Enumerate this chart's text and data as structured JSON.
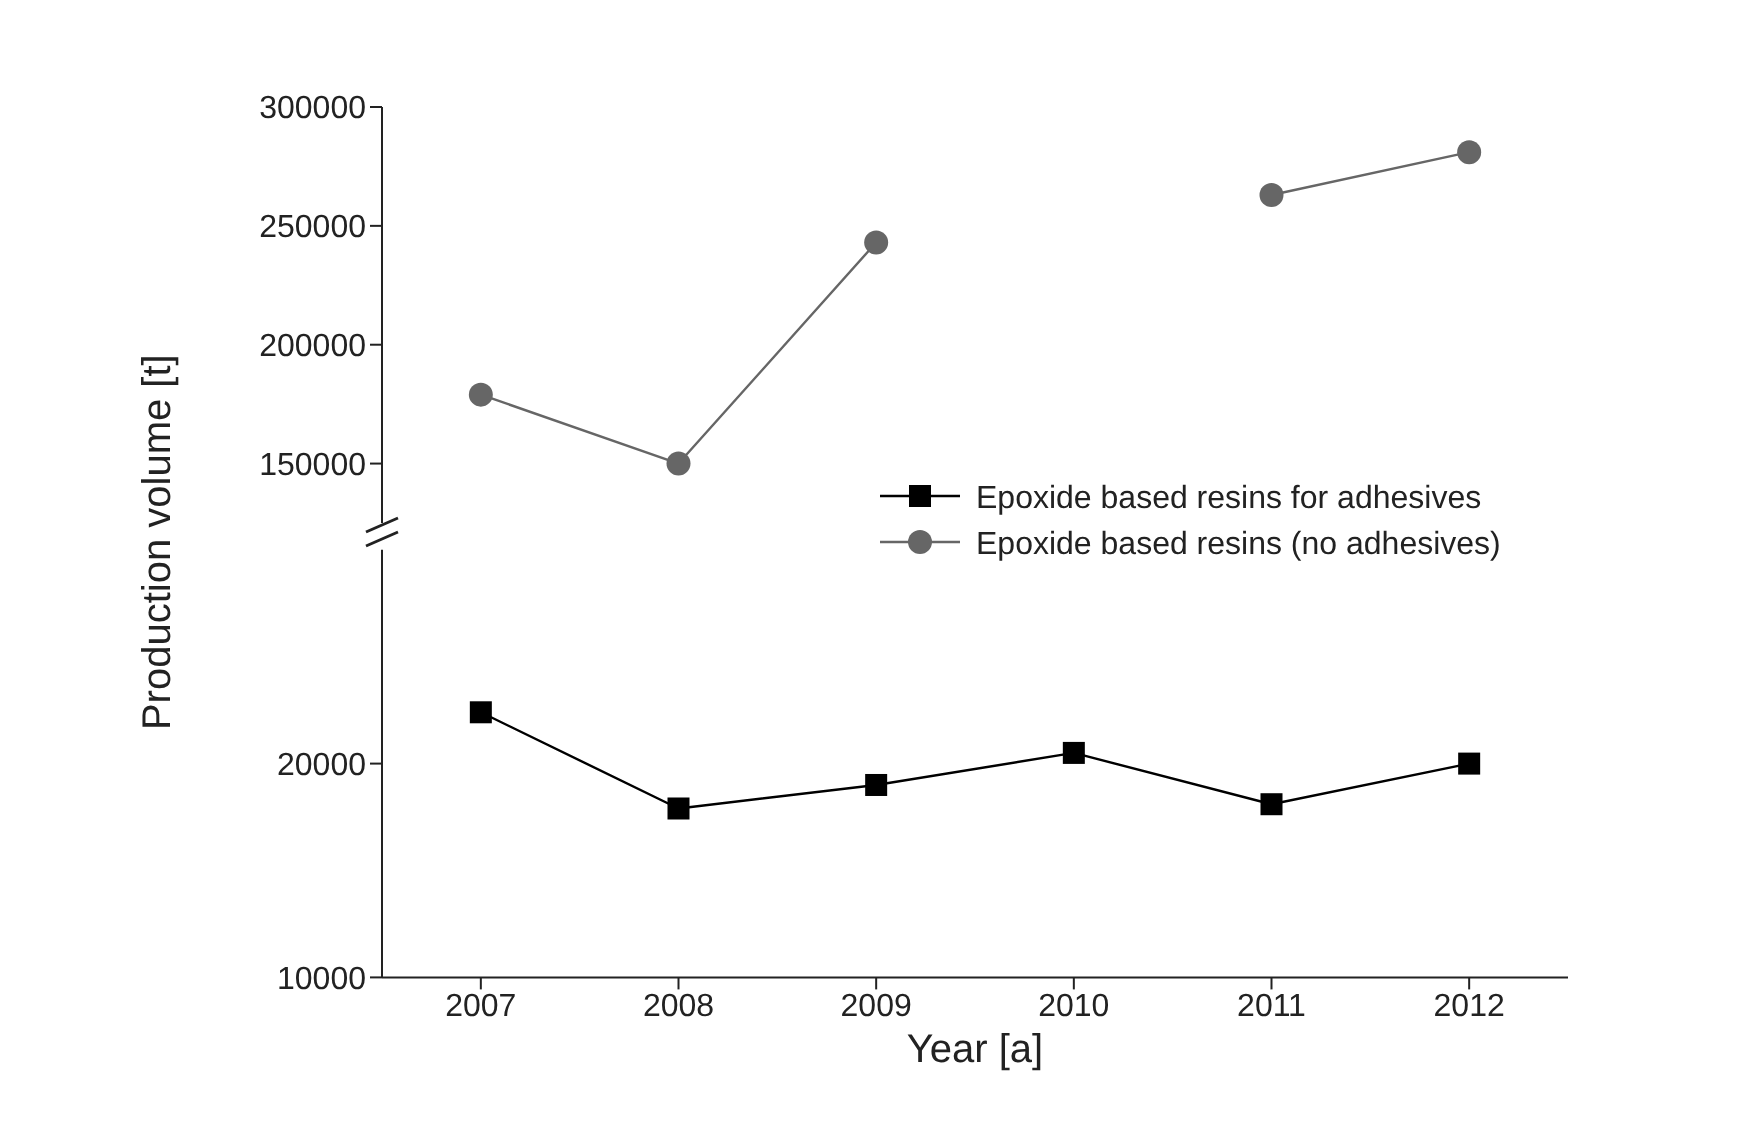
{
  "chart_data": [
    {
      "type": "line",
      "x": [
        2007,
        2008,
        2009,
        2010,
        2011,
        2012
      ],
      "ylim": [
        125000,
        300000
      ],
      "yticks": [
        150000,
        200000,
        250000,
        300000
      ],
      "tick_labels": "y",
      "marker": "circle",
      "legend": "bottom right",
      "ylabel": "Production volume [t]",
      "series": [
        {
          "name": "Epoxide based resins (no adhesives)",
          "color": "#666666",
          "values": [
            179000,
            150000,
            243000,
            null,
            263000,
            281000
          ]
        }
      ]
    },
    {
      "type": "line",
      "x": [
        2007,
        2008,
        2009,
        2010,
        2011,
        2012
      ],
      "xlim": [
        2006.5,
        2012.5
      ],
      "xticks": [
        2007,
        2008,
        2009,
        2010,
        2011,
        2012
      ],
      "ylim": [
        10000,
        30000
      ],
      "yticks": [
        10000,
        20000
      ],
      "marker": "square",
      "xlabel": "Year [a]",
      "series": [
        {
          "name": "Epoxide based resins for adhesives",
          "color": "#000000",
          "values": [
            22400,
            17900,
            19000,
            20500,
            18100,
            20000
          ]
        }
      ]
    }
  ]
}
